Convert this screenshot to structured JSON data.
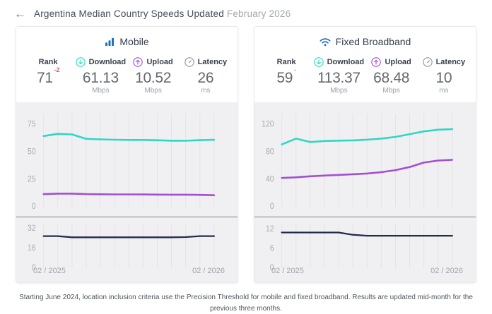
{
  "header": {
    "back_label": "←",
    "title": "Argentina Median Country Speeds Updated",
    "period": "February 2026"
  },
  "colors": {
    "download": "#2fd7c4",
    "upload": "#a44ed3",
    "latency_line": "#222c49",
    "grid": "#e4e4e7",
    "chart_bg": "#f0f0f2",
    "divider": "#7a7f88",
    "icon_blue": "#1e73be",
    "icon_gray": "#9096a0",
    "rank_delta_down": "#e25768",
    "rank_delta_none": "#9aa0a6",
    "tick_label": "#a8acb2"
  },
  "cards": [
    {
      "title": "Mobile",
      "stats": [
        {
          "label": "Rank",
          "value": "71",
          "delta": "-2",
          "delta_style": "color:#e25768",
          "unit": ""
        },
        {
          "label": "Download",
          "value": "61.13",
          "unit": "Mbps"
        },
        {
          "label": "Upload",
          "value": "10.52",
          "unit": "Mbps"
        },
        {
          "label": "Latency",
          "value": "26",
          "unit": "ms"
        }
      ]
    },
    {
      "title": "Fixed Broadband",
      "stats": [
        {
          "label": "Rank",
          "value": "59",
          "delta": "-",
          "delta_style": "color:#9aa0a6",
          "unit": ""
        },
        {
          "label": "Download",
          "value": "113.37",
          "unit": "Mbps"
        },
        {
          "label": "Upload",
          "value": "68.48",
          "unit": "Mbps"
        },
        {
          "label": "Latency",
          "value": "10",
          "unit": "ms"
        }
      ]
    }
  ],
  "chart_data": [
    {
      "id": "mobile-speed",
      "type": "line",
      "title": "Mobile download / upload (Mbps)",
      "x_start": "02 / 2025",
      "x_end": "02 / 2026",
      "points": 13,
      "ylim": [
        0,
        85
      ],
      "yticks": [
        75,
        50,
        25,
        0
      ],
      "grid": "vertical-monthly",
      "series": [
        {
          "name": "Download",
          "color": "download",
          "width": 2.6,
          "values": [
            64.5,
            66.5,
            66,
            62,
            61.5,
            61.2,
            61,
            61,
            60.7,
            60.3,
            60.2,
            60.8,
            61.13
          ]
        },
        {
          "name": "Upload",
          "color": "upload",
          "width": 2.6,
          "values": [
            11.5,
            12,
            12,
            11.5,
            11.4,
            11.3,
            11.3,
            11.2,
            11.1,
            11,
            11,
            10.8,
            10.52
          ]
        }
      ]
    },
    {
      "id": "mobile-latency",
      "type": "line",
      "title": "Mobile latency (ms)",
      "x_start": "02 / 2025",
      "x_end": "02 / 2026",
      "points": 13,
      "ylim": [
        0,
        35.5
      ],
      "yticks": [
        32,
        16,
        0
      ],
      "grid": "vertical-monthly",
      "series": [
        {
          "name": "Latency",
          "color": "latency_line",
          "width": 2.3,
          "values": [
            26,
            26,
            25,
            25,
            25,
            25,
            25,
            25,
            25,
            25,
            25.2,
            26,
            26
          ]
        }
      ]
    },
    {
      "id": "fixed-speed",
      "type": "line",
      "title": "Fixed broadband download / upload (Mbps)",
      "x_start": "02 / 2025",
      "x_end": "02 / 2026",
      "points": 13,
      "ylim": [
        0,
        136
      ],
      "yticks": [
        120,
        80,
        40,
        0
      ],
      "grid": "vertical-monthly",
      "series": [
        {
          "name": "Download",
          "color": "download",
          "width": 2.6,
          "values": [
            91,
            99.5,
            94.5,
            96,
            96.5,
            97,
            98,
            99.5,
            102,
            106,
            110,
            112.5,
            113.37
          ]
        },
        {
          "name": "Upload",
          "color": "upload",
          "width": 2.6,
          "values": [
            42,
            43,
            44.5,
            45.5,
            46.5,
            47.5,
            48.5,
            50.5,
            53.5,
            58,
            64.5,
            67.5,
            68.48
          ]
        }
      ]
    },
    {
      "id": "fixed-latency",
      "type": "line",
      "title": "Fixed broadband latency (ms)",
      "x_start": "02 / 2025",
      "x_end": "02 / 2026",
      "points": 13,
      "ylim": [
        0,
        13.5
      ],
      "yticks": [
        12,
        6,
        0
      ],
      "grid": "vertical-monthly",
      "series": [
        {
          "name": "Latency",
          "color": "latency_line",
          "width": 2.3,
          "values": [
            11,
            11,
            11,
            11,
            11,
            10.3,
            10,
            10,
            10,
            10,
            10,
            10,
            10
          ]
        }
      ]
    }
  ],
  "footer": {
    "note": "Starting June 2024, location inclusion criteria use the Precision Threshold for mobile and fixed broadband. Results are updated mid-month for the previous three months."
  }
}
